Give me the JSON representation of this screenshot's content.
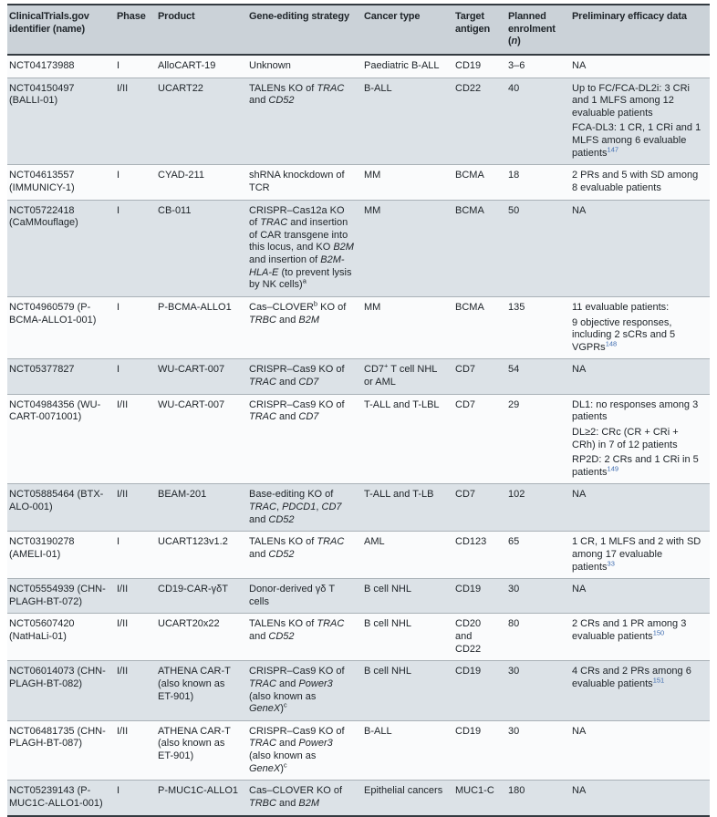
{
  "colors": {
    "header_bg": "#cbd2d8",
    "row_odd_bg": "#fafbfc",
    "row_even_bg": "#dce2e7",
    "border_dark": "#343b41",
    "row_divider": "#a9b1b7",
    "text": "#20262b",
    "citation": "#3e6cb0"
  },
  "table": {
    "columns": [
      {
        "id": "identifier",
        "label": [
          [
            [
              "ClinicalTrials.gov identifier (name)"
            ]
          ]
        ]
      },
      {
        "id": "phase",
        "label": [
          [
            [
              "Phase"
            ]
          ]
        ]
      },
      {
        "id": "product",
        "label": [
          [
            [
              "Product"
            ]
          ]
        ]
      },
      {
        "id": "strategy",
        "label": [
          [
            [
              "Gene-editing strategy"
            ]
          ]
        ]
      },
      {
        "id": "cancer-type",
        "label": [
          [
            [
              "Cancer type"
            ]
          ]
        ]
      },
      {
        "id": "target-antigen",
        "label": [
          [
            [
              "Target antigen"
            ]
          ]
        ]
      },
      {
        "id": "enrolment",
        "label": [
          [
            [
              "Planned enrolment ("
            ],
            [
              "n",
              "i"
            ],
            [
              ")"
            ]
          ]
        ]
      },
      {
        "id": "efficacy",
        "label": [
          [
            [
              "Preliminary efficacy data"
            ]
          ]
        ]
      }
    ],
    "rows": [
      [
        [
          [
            [
              "NCT04173988"
            ]
          ]
        ],
        [
          [
            [
              "I"
            ]
          ]
        ],
        [
          [
            [
              "AlloCART-19"
            ]
          ]
        ],
        [
          [
            [
              "Unknown"
            ]
          ]
        ],
        [
          [
            [
              "Paediatric B-ALL"
            ]
          ]
        ],
        [
          [
            [
              "CD19"
            ]
          ]
        ],
        [
          [
            [
              "3–6"
            ]
          ]
        ],
        [
          [
            [
              "NA"
            ]
          ]
        ]
      ],
      [
        [
          [
            [
              "NCT04150497 (BALLI-01)"
            ]
          ]
        ],
        [
          [
            [
              "I/II"
            ]
          ]
        ],
        [
          [
            [
              "UCART22"
            ]
          ]
        ],
        [
          [
            [
              "TALENs KO of "
            ],
            [
              "TRAC",
              "i"
            ],
            [
              " and "
            ],
            [
              "CD52",
              "i"
            ]
          ]
        ],
        [
          [
            [
              "B-ALL"
            ]
          ]
        ],
        [
          [
            [
              "CD22"
            ]
          ]
        ],
        [
          [
            [
              "40"
            ]
          ]
        ],
        [
          [
            [
              "Up to FC/FCA-DL2i: 3 CRi and 1 MLFS among 12 evaluable patients"
            ]
          ],
          [
            [
              "FCA-DL3: 1 CR, 1 CRi and 1 MLFS among 6 evaluable patients"
            ],
            [
              "147",
              "ref"
            ]
          ]
        ]
      ],
      [
        [
          [
            [
              "NCT04613557 (IMMUNICY-1)"
            ]
          ]
        ],
        [
          [
            [
              "I"
            ]
          ]
        ],
        [
          [
            [
              "CYAD-211"
            ]
          ]
        ],
        [
          [
            [
              "shRNA knockdown of TCR"
            ]
          ]
        ],
        [
          [
            [
              "MM"
            ]
          ]
        ],
        [
          [
            [
              "BCMA"
            ]
          ]
        ],
        [
          [
            [
              "18"
            ]
          ]
        ],
        [
          [
            [
              "2 PRs and 5 with SD among 8 evaluable patients"
            ]
          ]
        ]
      ],
      [
        [
          [
            [
              "NCT05722418 (CaMMouflage)"
            ]
          ]
        ],
        [
          [
            [
              "I"
            ]
          ]
        ],
        [
          [
            [
              "CB-011"
            ]
          ]
        ],
        [
          [
            [
              "CRISPR–Cas12a KO of "
            ],
            [
              "TRAC",
              "i"
            ],
            [
              " and insertion of CAR transgene into this locus, and KO "
            ],
            [
              "B2M",
              "i"
            ],
            [
              " and insertion of "
            ],
            [
              "B2M-HLA-E",
              "i"
            ],
            [
              " (to prevent lysis by NK cells)"
            ],
            [
              "a",
              "sup"
            ]
          ]
        ],
        [
          [
            [
              "MM"
            ]
          ]
        ],
        [
          [
            [
              "BCMA"
            ]
          ]
        ],
        [
          [
            [
              "50"
            ]
          ]
        ],
        [
          [
            [
              "NA"
            ]
          ]
        ]
      ],
      [
        [
          [
            [
              "NCT04960579 (P-BCMA-ALLO1-001)"
            ]
          ]
        ],
        [
          [
            [
              "I"
            ]
          ]
        ],
        [
          [
            [
              "P-BCMA-ALLO1"
            ]
          ]
        ],
        [
          [
            [
              "Cas–CLOVER"
            ],
            [
              "b",
              "sup"
            ],
            [
              " KO of "
            ],
            [
              "TRBC",
              "i"
            ],
            [
              " and "
            ],
            [
              "B2M",
              "i"
            ]
          ]
        ],
        [
          [
            [
              "MM"
            ]
          ]
        ],
        [
          [
            [
              "BCMA"
            ]
          ]
        ],
        [
          [
            [
              "135"
            ]
          ]
        ],
        [
          [
            [
              "11 evaluable patients:"
            ]
          ],
          [
            [
              "9 objective responses, including 2 sCRs and 5 VGPRs"
            ],
            [
              "148",
              "ref"
            ]
          ]
        ]
      ],
      [
        [
          [
            [
              "NCT05377827"
            ]
          ]
        ],
        [
          [
            [
              "I"
            ]
          ]
        ],
        [
          [
            [
              "WU-CART-007"
            ]
          ]
        ],
        [
          [
            [
              "CRISPR–Cas9 KO of "
            ],
            [
              "TRAC",
              "i"
            ],
            [
              " and "
            ],
            [
              "CD7",
              "i"
            ]
          ]
        ],
        [
          [
            [
              "CD7"
            ],
            [
              "+",
              "sup"
            ],
            [
              " T cell NHL or AML"
            ]
          ]
        ],
        [
          [
            [
              "CD7"
            ]
          ]
        ],
        [
          [
            [
              "54"
            ]
          ]
        ],
        [
          [
            [
              "NA"
            ]
          ]
        ]
      ],
      [
        [
          [
            [
              "NCT04984356 (WU-CART-0071001)"
            ]
          ]
        ],
        [
          [
            [
              "I/II"
            ]
          ]
        ],
        [
          [
            [
              "WU-CART-007"
            ]
          ]
        ],
        [
          [
            [
              "CRISPR–Cas9 KO of "
            ],
            [
              "TRAC",
              "i"
            ],
            [
              " and "
            ],
            [
              "CD7",
              "i"
            ]
          ]
        ],
        [
          [
            [
              "T-ALL and T-LBL"
            ]
          ]
        ],
        [
          [
            [
              "CD7"
            ]
          ]
        ],
        [
          [
            [
              "29"
            ]
          ]
        ],
        [
          [
            [
              "DL1: no responses among 3 patients"
            ]
          ],
          [
            [
              "DL≥2: CRc (CR + CRi + CRh) in 7 of 12 patients"
            ]
          ],
          [
            [
              "RP2D: 2 CRs and 1 CRi in 5 patients"
            ],
            [
              "149",
              "ref"
            ]
          ]
        ]
      ],
      [
        [
          [
            [
              "NCT05885464 (BTX-ALO-001)"
            ]
          ]
        ],
        [
          [
            [
              "I/II"
            ]
          ]
        ],
        [
          [
            [
              "BEAM-201"
            ]
          ]
        ],
        [
          [
            [
              "Base-editing KO of "
            ],
            [
              "TRAC",
              "i"
            ],
            [
              ", "
            ],
            [
              "PDCD1",
              "i"
            ],
            [
              ", "
            ],
            [
              "CD7",
              "i"
            ],
            [
              " and "
            ],
            [
              "CD52",
              "i"
            ]
          ]
        ],
        [
          [
            [
              "T-ALL and T-LB"
            ]
          ]
        ],
        [
          [
            [
              "CD7"
            ]
          ]
        ],
        [
          [
            [
              "102"
            ]
          ]
        ],
        [
          [
            [
              "NA"
            ]
          ]
        ]
      ],
      [
        [
          [
            [
              "NCT03190278 (AMELI-01)"
            ]
          ]
        ],
        [
          [
            [
              "I"
            ]
          ]
        ],
        [
          [
            [
              "UCART123v1.2"
            ]
          ]
        ],
        [
          [
            [
              "TALENs KO of "
            ],
            [
              "TRAC",
              "i"
            ],
            [
              " and "
            ],
            [
              "CD52",
              "i"
            ]
          ]
        ],
        [
          [
            [
              "AML"
            ]
          ]
        ],
        [
          [
            [
              "CD123"
            ]
          ]
        ],
        [
          [
            [
              "65"
            ]
          ]
        ],
        [
          [
            [
              "1 CR, 1 MLFS and 2 with SD among 17 evaluable patients"
            ],
            [
              "33",
              "ref"
            ]
          ]
        ]
      ],
      [
        [
          [
            [
              "NCT05554939 (CHN-PLAGH-BT-072)"
            ]
          ]
        ],
        [
          [
            [
              "I/II"
            ]
          ]
        ],
        [
          [
            [
              "CD19-CAR-γδT"
            ]
          ]
        ],
        [
          [
            [
              "Donor-derived γδ T cells"
            ]
          ]
        ],
        [
          [
            [
              "B cell NHL"
            ]
          ]
        ],
        [
          [
            [
              "CD19"
            ]
          ]
        ],
        [
          [
            [
              "30"
            ]
          ]
        ],
        [
          [
            [
              "NA"
            ]
          ]
        ]
      ],
      [
        [
          [
            [
              "NCT05607420 (NatHaLi-01)"
            ]
          ]
        ],
        [
          [
            [
              "I/II"
            ]
          ]
        ],
        [
          [
            [
              "UCART20x22"
            ]
          ]
        ],
        [
          [
            [
              "TALENs KO of "
            ],
            [
              "TRAC",
              "i"
            ],
            [
              " and "
            ],
            [
              "CD52",
              "i"
            ]
          ]
        ],
        [
          [
            [
              "B cell NHL"
            ]
          ]
        ],
        [
          [
            [
              "CD20 and CD22"
            ]
          ]
        ],
        [
          [
            [
              "80"
            ]
          ]
        ],
        [
          [
            [
              "2 CRs and 1 PR among 3 evaluable patients"
            ],
            [
              "150",
              "ref"
            ]
          ]
        ]
      ],
      [
        [
          [
            [
              "NCT06014073 (CHN-PLAGH-BT-082)"
            ]
          ]
        ],
        [
          [
            [
              "I/II"
            ]
          ]
        ],
        [
          [
            [
              "ATHENA CAR-T (also known as ET-901)"
            ]
          ]
        ],
        [
          [
            [
              "CRISPR–Cas9 KO of "
            ],
            [
              "TRAC",
              "i"
            ],
            [
              " and "
            ],
            [
              "Power3",
              "i"
            ],
            [
              " (also known as "
            ],
            [
              "GeneX",
              "i"
            ],
            [
              ")"
            ],
            [
              "c",
              "sup"
            ]
          ]
        ],
        [
          [
            [
              "B cell NHL"
            ]
          ]
        ],
        [
          [
            [
              "CD19"
            ]
          ]
        ],
        [
          [
            [
              "30"
            ]
          ]
        ],
        [
          [
            [
              "4 CRs and 2 PRs among 6 evaluable patients"
            ],
            [
              "151",
              "ref"
            ]
          ]
        ]
      ],
      [
        [
          [
            [
              "NCT06481735 (CHN-PLAGH-BT-087)"
            ]
          ]
        ],
        [
          [
            [
              "I/II"
            ]
          ]
        ],
        [
          [
            [
              "ATHENA CAR-T (also known as ET-901)"
            ]
          ]
        ],
        [
          [
            [
              "CRISPR–Cas9 KO of "
            ],
            [
              "TRAC",
              "i"
            ],
            [
              " and "
            ],
            [
              "Power3",
              "i"
            ],
            [
              " (also known as "
            ],
            [
              "GeneX",
              "i"
            ],
            [
              ")"
            ],
            [
              "c",
              "sup"
            ]
          ]
        ],
        [
          [
            [
              "B-ALL"
            ]
          ]
        ],
        [
          [
            [
              "CD19"
            ]
          ]
        ],
        [
          [
            [
              "30"
            ]
          ]
        ],
        [
          [
            [
              "NA"
            ]
          ]
        ]
      ],
      [
        [
          [
            [
              "NCT05239143 (P-MUC1C-ALLO1-001)"
            ]
          ]
        ],
        [
          [
            [
              "I"
            ]
          ]
        ],
        [
          [
            [
              "P-MUC1C-ALLO1"
            ]
          ]
        ],
        [
          [
            [
              "Cas–CLOVER KO of "
            ],
            [
              "TRBC",
              "i"
            ],
            [
              " and "
            ],
            [
              "B2M",
              "i"
            ]
          ]
        ],
        [
          [
            [
              "Epithelial cancers"
            ]
          ]
        ],
        [
          [
            [
              "MUC1-C"
            ]
          ]
        ],
        [
          [
            [
              "180"
            ]
          ]
        ],
        [
          [
            [
              "NA"
            ]
          ]
        ]
      ]
    ]
  }
}
